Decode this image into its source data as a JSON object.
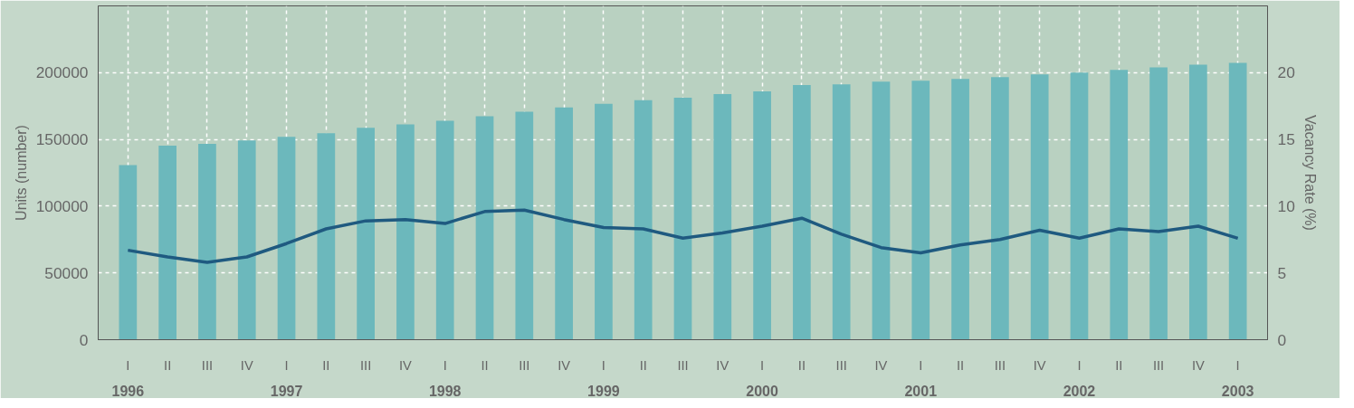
{
  "chart_data": {
    "type": "bar",
    "ylabel": "Units (number)",
    "y2label": "Vacancy Rate (%)",
    "categories": [
      "I",
      "II",
      "III",
      "IV",
      "I",
      "II",
      "III",
      "IV",
      "I",
      "II",
      "III",
      "IV",
      "I",
      "II",
      "III",
      "IV",
      "I",
      "II",
      "III",
      "IV",
      "I",
      "II",
      "III",
      "IV",
      "I",
      "II",
      "III",
      "IV",
      "I"
    ],
    "annotations": [
      "1996",
      "1997",
      "1998",
      "1999",
      "2000",
      "2001",
      "2002",
      "2003"
    ],
    "series": [
      {
        "color": "#6cb8bc",
        "values": [
          130700,
          145300,
          146700,
          149300,
          152000,
          154700,
          158700,
          161300,
          164000,
          167300,
          170700,
          174000,
          176700,
          179300,
          181300,
          184000,
          186000,
          190700,
          191300,
          193300,
          194000,
          195300,
          196700,
          198700,
          200000,
          202000,
          204000,
          206000,
          207300
        ]
      },
      {
        "type": "line",
        "axis": "y2",
        "color": "#1f5a80",
        "values": [
          6.7,
          6.2,
          5.8,
          6.2,
          7.2,
          8.3,
          8.9,
          9.0,
          8.7,
          9.6,
          9.7,
          9.0,
          8.4,
          8.3,
          7.6,
          8.0,
          8.5,
          9.1,
          7.9,
          6.9,
          6.5,
          7.1,
          7.5,
          8.2,
          7.6,
          8.3,
          8.1,
          8.5,
          7.6
        ]
      }
    ],
    "ylim": [
      0,
      250000
    ],
    "yticks": [
      0,
      50000,
      100000,
      150000,
      200000
    ],
    "y2lim": [
      0,
      25
    ],
    "y2ticks": [
      0,
      5,
      10,
      15,
      20
    ],
    "grid": true
  }
}
